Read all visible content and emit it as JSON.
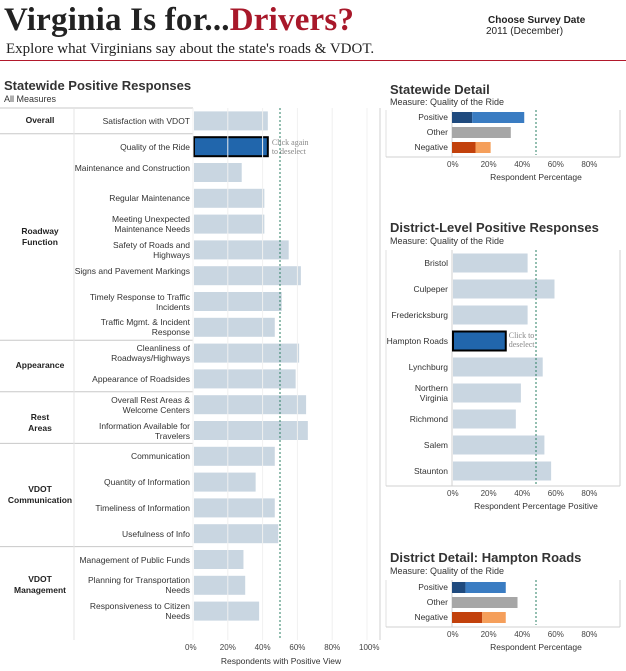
{
  "header": {
    "title_part1": "Virginia Is for...",
    "title_part2": "Drivers?",
    "subtitle": "Explore what Virginians say about the state's roads & VDOT.",
    "survey_label": "Choose Survey Date",
    "survey_value": "2011 (December)"
  },
  "colors": {
    "bar_default": "#c9d6e1",
    "bar_selected": "#2166ac",
    "positive_dark": "#1f4a7e",
    "positive_light": "#3a7cc2",
    "other": "#a6a6a6",
    "negative_dark": "#c2410c",
    "negative_light": "#f59f5b",
    "reference_line": "#2a7f63",
    "title_accent": "#a8182a"
  },
  "chart_data": [
    {
      "id": "statewide-positive",
      "type": "bar",
      "orientation": "horizontal",
      "title": "Statewide Positive Responses",
      "subtitle": "All Measures",
      "xlabel": "Respondents with Positive View",
      "xlim": [
        0,
        100
      ],
      "xticks": [
        "0%",
        "20%",
        "40%",
        "60%",
        "80%",
        "100%"
      ],
      "reference_line": 50,
      "groups": [
        {
          "name": "Overall",
          "categories": [
            "Satisfaction with VDOT"
          ],
          "values": [
            43
          ]
        },
        {
          "name": "Roadway Function",
          "categories": [
            "Quality of the Ride",
            "Maintenance and Construction",
            "Regular Maintenance",
            "Meeting Unexpected Maintenance Needs",
            "Safety of Roads and Highways",
            "Signs and Pavement Markings",
            "Timely Response to Traffic Incidents",
            "Traffic Mgmt. & Incident Response"
          ],
          "values": [
            43,
            28,
            41,
            41,
            55,
            62,
            51,
            47
          ]
        },
        {
          "name": "Appearance",
          "categories": [
            "Cleanliness of Roadways/Highways",
            "Appearance of Roadsides"
          ],
          "values": [
            61,
            59
          ]
        },
        {
          "name": "Rest Areas",
          "categories": [
            "Overall Rest Areas & Welcome Centers",
            "Information Available for Travelers"
          ],
          "values": [
            65,
            66
          ]
        },
        {
          "name": "VDOT Communication",
          "categories": [
            "Communication",
            "Quantity of Information",
            "Timeliness of Information",
            "Usefulness of Info"
          ],
          "values": [
            47,
            36,
            47,
            49
          ]
        },
        {
          "name": "VDOT Management",
          "categories": [
            "Management of Public Funds",
            "Planning for Transportation Needs",
            "Responsiveness to Citizen Needs"
          ],
          "values": [
            29,
            30,
            38
          ]
        }
      ],
      "selected": "Quality of the Ride",
      "annotation": "Click again to deselect"
    },
    {
      "id": "statewide-detail",
      "type": "bar",
      "orientation": "horizontal",
      "stacked": true,
      "title": "Statewide Detail",
      "subtitle": "Measure: Quality of the Ride",
      "xlabel": "Respondent Percentage",
      "xlim": [
        0,
        100
      ],
      "xticks": [
        "0%",
        "20%",
        "40%",
        "60%",
        "80%"
      ],
      "reference_line": 50,
      "categories": [
        "Positive",
        "Other",
        "Negative"
      ],
      "series": [
        {
          "values": [
            12,
            35,
            14
          ]
        },
        {
          "values": [
            31,
            0,
            9
          ]
        }
      ]
    },
    {
      "id": "district-positive",
      "type": "bar",
      "orientation": "horizontal",
      "title": "District-Level Positive Responses",
      "subtitle": "Measure: Quality of the Ride",
      "xlabel": "Respondent Percentage Positive",
      "xlim": [
        0,
        100
      ],
      "xticks": [
        "0%",
        "20%",
        "40%",
        "60%",
        "80%"
      ],
      "reference_line": 50,
      "categories": [
        "Bristol",
        "Culpeper",
        "Fredericksburg",
        "Hampton Roads",
        "Lynchburg",
        "Northern Virginia",
        "Richmond",
        "Salem",
        "Staunton"
      ],
      "values": [
        45,
        61,
        45,
        32,
        54,
        41,
        38,
        55,
        59
      ],
      "selected": "Hampton Roads",
      "annotation": "Click to deselect"
    },
    {
      "id": "district-detail",
      "type": "bar",
      "orientation": "horizontal",
      "stacked": true,
      "title": "District Detail: Hampton Roads",
      "subtitle": "Measure: Quality of the Ride",
      "xlabel": "Respondent Percentage",
      "xlim": [
        0,
        100
      ],
      "xticks": [
        "0%",
        "20%",
        "40%",
        "60%",
        "80%"
      ],
      "reference_line": 50,
      "categories": [
        "Positive",
        "Other",
        "Negative"
      ],
      "series": [
        {
          "values": [
            8,
            39,
            18
          ]
        },
        {
          "values": [
            24,
            0,
            14
          ]
        }
      ]
    }
  ]
}
